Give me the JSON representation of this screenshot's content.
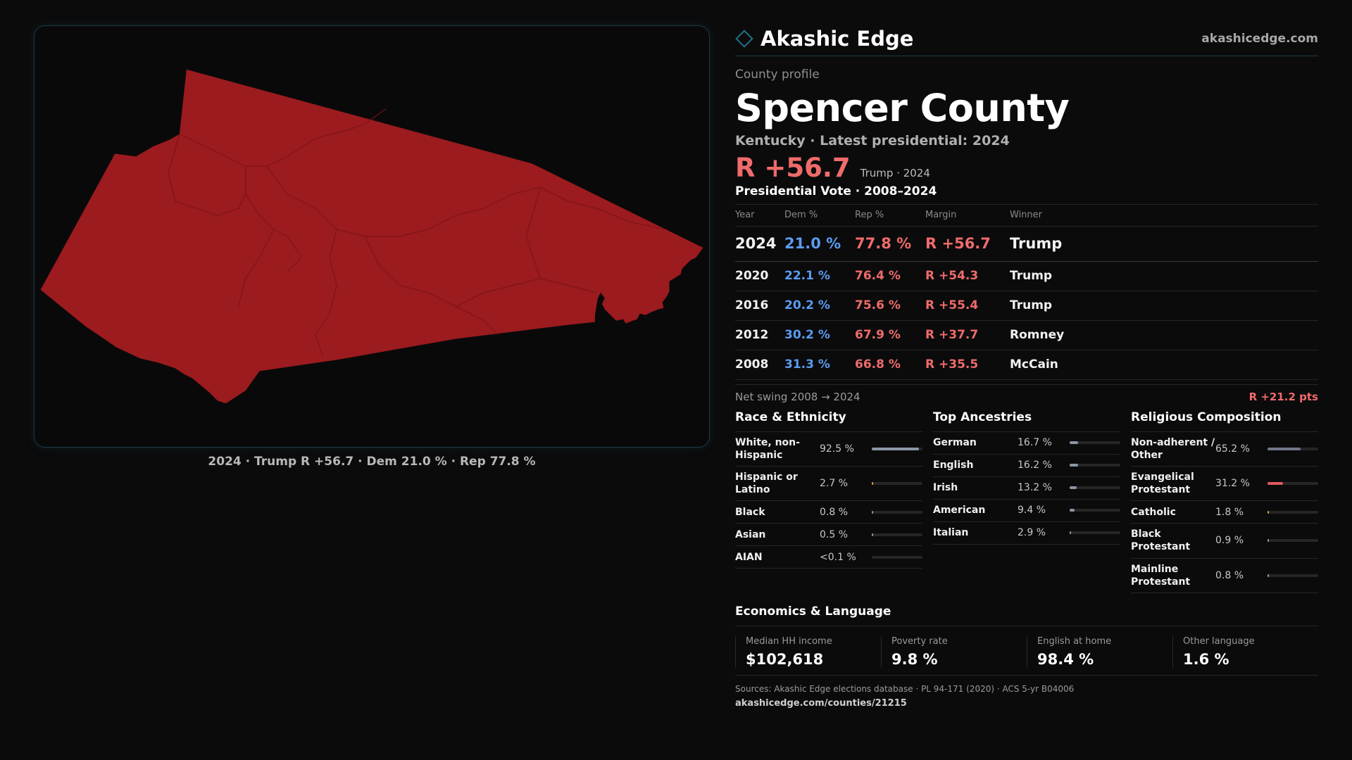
{
  "brand": {
    "name": "Akashic Edge",
    "url": "akashicedge.com",
    "accent_color": "#1f6f86"
  },
  "county": {
    "eyebrow": "County profile",
    "name": "Spencer County",
    "subtitle": "Kentucky · Latest presidential: 2024",
    "headline_margin": "R +56.7",
    "headline_note": "Trump · 2024"
  },
  "map": {
    "caption": "2024 · Trump R +56.7 · Dem 21.0 % · Rep 77.8 %",
    "fill_color": "#9b1b1e",
    "border_color": "#7a1416"
  },
  "vote_table": {
    "title": "Presidential Vote · 2008–2024",
    "headers": {
      "year": "Year",
      "dem": "Dem %",
      "rep": "Rep %",
      "margin": "Margin",
      "winner": "Winner"
    },
    "rows": [
      {
        "year": "2024",
        "dem": "21.0 %",
        "rep": "77.8 %",
        "margin": "R +56.7",
        "winner": "Trump"
      },
      {
        "year": "2020",
        "dem": "22.1 %",
        "rep": "76.4 %",
        "margin": "R +54.3",
        "winner": "Trump"
      },
      {
        "year": "2016",
        "dem": "20.2 %",
        "rep": "75.6 %",
        "margin": "R +55.4",
        "winner": "Trump"
      },
      {
        "year": "2012",
        "dem": "30.2 %",
        "rep": "67.9 %",
        "margin": "R +37.7",
        "winner": "Romney"
      },
      {
        "year": "2008",
        "dem": "31.3 %",
        "rep": "66.8 %",
        "margin": "R +35.5",
        "winner": "McCain"
      }
    ],
    "swing_label": "Net swing 2008 → 2024",
    "swing_value": "R +21.2 pts"
  },
  "race": {
    "title": "Race & Ethnicity",
    "items": [
      {
        "label": "White, non-Hispanic",
        "value": "92.5 %",
        "share": 0.925,
        "color": "#8d96a8"
      },
      {
        "label": "Hispanic or Latino",
        "value": "2.7 %",
        "share": 0.027,
        "color": "#e0a030"
      },
      {
        "label": "Black",
        "value": "0.8 %",
        "share": 0.008,
        "color": "#8d96a8"
      },
      {
        "label": "Asian",
        "value": "0.5 %",
        "share": 0.005,
        "color": "#8d96a8"
      },
      {
        "label": "AIAN",
        "value": "<0.1 %",
        "share": 0.0,
        "color": "#8d96a8"
      }
    ]
  },
  "ancestry": {
    "title": "Top Ancestries",
    "items": [
      {
        "label": "German",
        "value": "16.7 %",
        "share": 0.167,
        "color": "#8d96a8"
      },
      {
        "label": "English",
        "value": "16.2 %",
        "share": 0.162,
        "color": "#8d96a8"
      },
      {
        "label": "Irish",
        "value": "13.2 %",
        "share": 0.132,
        "color": "#8d96a8"
      },
      {
        "label": "American",
        "value": "9.4 %",
        "share": 0.094,
        "color": "#8d96a8"
      },
      {
        "label": "Italian",
        "value": "2.9 %",
        "share": 0.029,
        "color": "#8d96a8"
      }
    ]
  },
  "religion": {
    "title": "Religious Composition",
    "items": [
      {
        "label": "Non-adherent / Other",
        "value": "65.2 %",
        "share": 0.652,
        "color": "#6f7788"
      },
      {
        "label": "Evangelical Protestant",
        "value": "31.2 %",
        "share": 0.312,
        "color": "#e05a5a"
      },
      {
        "label": "Catholic",
        "value": "1.8 %",
        "share": 0.018,
        "color": "#d0a030"
      },
      {
        "label": "Black Protestant",
        "value": "0.9 %",
        "share": 0.009,
        "color": "#8d96a8"
      },
      {
        "label": "Mainline Protestant",
        "value": "0.8 %",
        "share": 0.008,
        "color": "#8d96a8"
      }
    ]
  },
  "economics": {
    "title": "Economics & Language",
    "items": [
      {
        "label": "Median HH income",
        "value": "$102,618"
      },
      {
        "label": "Poverty rate",
        "value": "9.8 %"
      },
      {
        "label": "English at home",
        "value": "98.4 %"
      },
      {
        "label": "Other language",
        "value": "1.6 %"
      }
    ]
  },
  "footer": {
    "sources": "Sources: Akashic Edge elections database · PL 94-171 (2020) · ACS 5-yr B04006",
    "url": "akashicedge.com/counties/21215"
  }
}
